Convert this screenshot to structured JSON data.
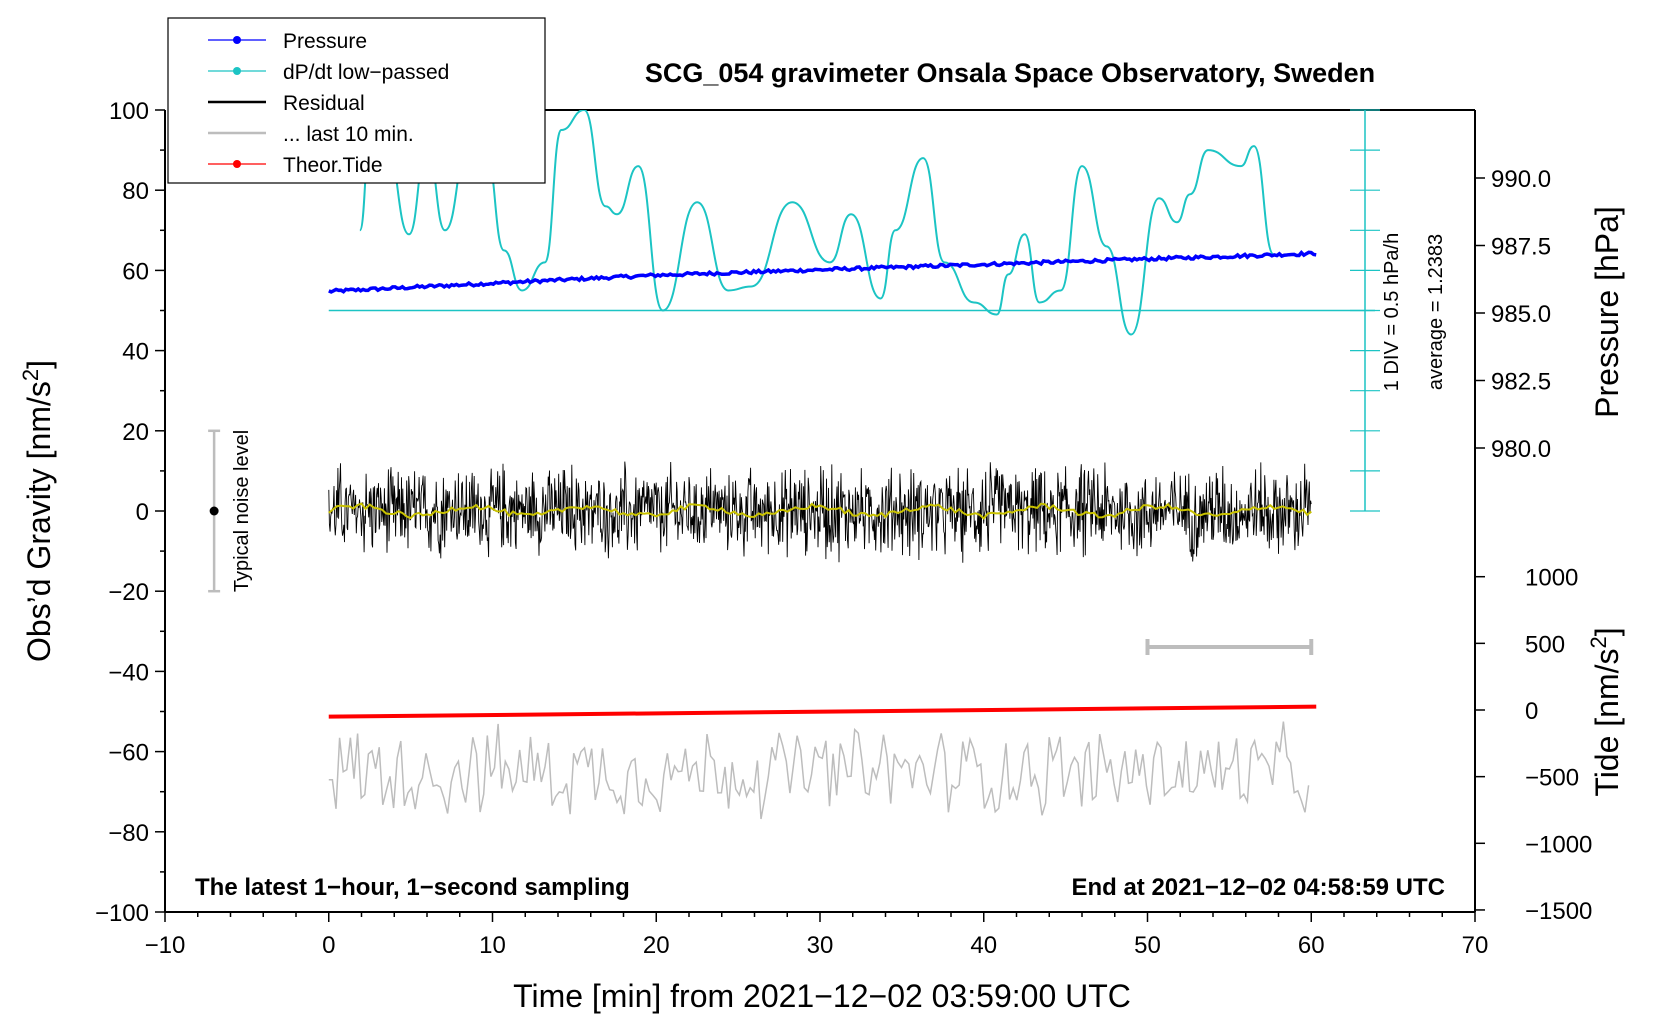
{
  "chart_data": {
    "type": "line",
    "title": "SCG_054 gravimeter Onsala Space Observatory, Sweden",
    "xlabel": "Time [min] from 2021−12−02 03:59:00 UTC",
    "ylabel_left": "Obs’d Gravity [nm/s",
    "ylabel_left_sup": "2",
    "ylabel_left_end": "]",
    "ylabel_pressure": "Pressure [hPa]",
    "ylabel_tide": "Tide [nm/s",
    "ylabel_tide_sup": "2",
    "ylabel_tide_end": "]",
    "xlim": [
      -10,
      70
    ],
    "ylim": [
      -100,
      100
    ],
    "x_ticks": [
      "−10",
      "0",
      "10",
      "20",
      "30",
      "40",
      "50",
      "60",
      "70"
    ],
    "x_tick_values": [
      -10,
      0,
      10,
      20,
      30,
      40,
      50,
      60,
      70
    ],
    "y_ticks": [
      "100",
      "80",
      "60",
      "40",
      "20",
      "0",
      "−20",
      "−40",
      "−60",
      "−80",
      "−100"
    ],
    "y_tick_values": [
      100,
      80,
      60,
      40,
      20,
      0,
      -20,
      -40,
      -60,
      -80,
      -100
    ],
    "pressure_ticks": [
      "990.0",
      "987.5",
      "985.0",
      "982.5",
      "980.0"
    ],
    "pressure_tick_values": [
      990.0,
      987.5,
      985.0,
      982.5,
      980.0
    ],
    "tide_ticks": [
      "1000",
      "500",
      "0",
      "−500",
      "−1000",
      "−1500"
    ],
    "tide_tick_values": [
      1000,
      500,
      0,
      -500,
      -1000,
      -1500
    ],
    "note_left": "The latest 1−hour, 1−second sampling",
    "note_right": "End at 2021−12−02 04:58:59 UTC",
    "noise_label": "Typical noise level",
    "noise_range": [
      -20,
      20
    ],
    "dpdt_scale_label": "1 DIV = 0.5 hPa/h",
    "dpdt_average_label": "average = 1.2383",
    "last10_range": [
      50,
      60
    ],
    "legend": [
      {
        "label": "Pressure",
        "color": "#0000ff",
        "marker": true
      },
      {
        "label": "dP/dt low−passed",
        "color": "#1cc4c4",
        "marker": true
      },
      {
        "label": "Residual",
        "color": "#000000",
        "marker": false
      },
      {
        "label": "... last 10 min.",
        "color": "#bdbdbd",
        "marker": false
      },
      {
        "label": "Theor.Tide",
        "color": "#ff0000",
        "marker": true
      }
    ],
    "series": [
      {
        "name": "Pressure",
        "unit": "hPa",
        "x": [
          0,
          10,
          20,
          30,
          40,
          50,
          60
        ],
        "values": [
          985.8,
          986.1,
          986.4,
          986.6,
          986.8,
          987.0,
          987.2
        ]
      },
      {
        "name": "dP/dt low−passed",
        "unit": "relative",
        "baseline_y": 50,
        "x": [
          1.9,
          2.6,
          3.5,
          4.9,
          6.0,
          7.1,
          8.6,
          9.6,
          10.7,
          11.8,
          13.2,
          14.2,
          15.6,
          16.9,
          17.6,
          18.9,
          20.4,
          22.5,
          24.4,
          25.8,
          28.3,
          30.6,
          31.9,
          33.7,
          34.6,
          36.3,
          37.6,
          39.4,
          40.8,
          41.5,
          42.5,
          43.4,
          44.7,
          46.0,
          47.5,
          49.0,
          50.7,
          51.8,
          52.6,
          53.7,
          55.7,
          56.5,
          57.7
        ],
        "values": [
          70,
          98,
          92,
          69,
          91,
          70,
          93,
          90,
          65,
          55,
          62,
          95,
          100,
          76,
          74,
          86,
          50,
          77,
          55,
          56,
          77,
          62,
          74,
          53,
          70,
          88,
          62,
          52,
          49,
          59,
          69,
          52,
          55,
          86,
          66,
          44,
          78,
          72,
          79,
          90,
          86,
          91,
          64
        ]
      },
      {
        "name": "Residual",
        "unit": "nm/s2",
        "x_range": [
          0,
          60
        ],
        "noise_amplitude": 12
      },
      {
        "name": "Residual smoothed",
        "unit": "nm/s2",
        "x_range": [
          0,
          60
        ],
        "value": 0
      },
      {
        "name": "... last 10 min.",
        "unit": "nm/s2 (expanded)",
        "x_range": [
          0,
          60
        ],
        "center": -65
      },
      {
        "name": "Theor.Tide",
        "unit": "nm/s2",
        "x": [
          0,
          60
        ],
        "values": [
          -50,
          25
        ]
      }
    ]
  }
}
